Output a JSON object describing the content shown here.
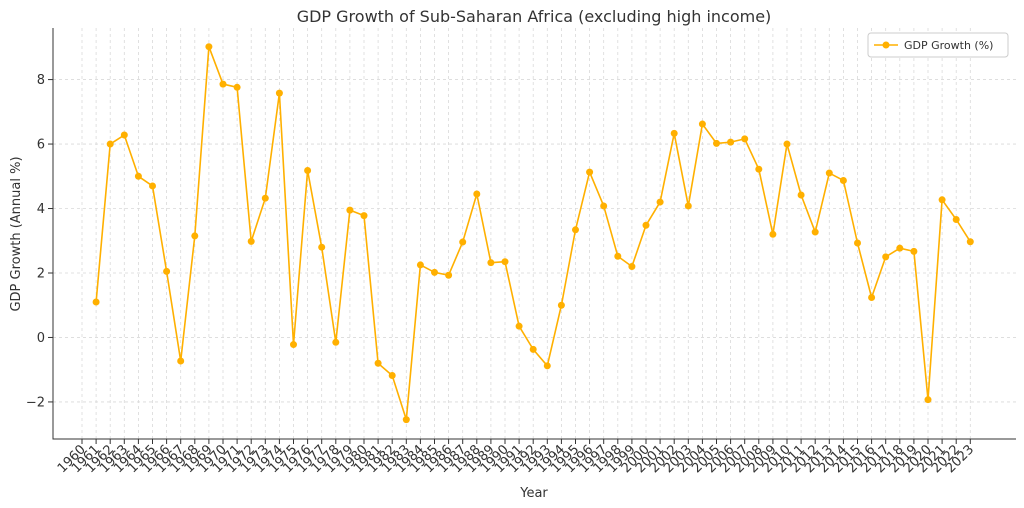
{
  "chart_data": {
    "type": "line",
    "title": "GDP Growth of Sub-Saharan Africa (excluding high income)",
    "xlabel": "Year",
    "ylabel": "GDP Growth (Annual %)",
    "x": [
      1960,
      1961,
      1962,
      1963,
      1964,
      1965,
      1966,
      1967,
      1968,
      1969,
      1970,
      1971,
      1972,
      1973,
      1974,
      1975,
      1976,
      1977,
      1978,
      1979,
      1980,
      1981,
      1982,
      1983,
      1984,
      1985,
      1986,
      1987,
      1988,
      1989,
      1990,
      1991,
      1992,
      1993,
      1994,
      1995,
      1996,
      1997,
      1998,
      1999,
      2000,
      2001,
      2002,
      2003,
      2004,
      2005,
      2006,
      2007,
      2008,
      2009,
      2010,
      2011,
      2012,
      2013,
      2014,
      2015,
      2016,
      2017,
      2018,
      2019,
      2020,
      2021,
      2022,
      2023
    ],
    "xticks": [
      "1960",
      "1961",
      "1962",
      "1963",
      "1964",
      "1965",
      "1966",
      "1967",
      "1968",
      "1969",
      "1970",
      "1971",
      "1972",
      "1973",
      "1974",
      "1975",
      "1976",
      "1977",
      "1978",
      "1979",
      "1980",
      "1981",
      "1982",
      "1983",
      "1984",
      "1985",
      "1986",
      "1987",
      "1988",
      "1989",
      "1990",
      "1991",
      "1992",
      "1993",
      "1994",
      "1995",
      "1996",
      "1997",
      "1998",
      "1999",
      "2000",
      "2001",
      "2002",
      "2003",
      "2004",
      "2005",
      "2006",
      "2007",
      "2008",
      "2009",
      "2010",
      "2011",
      "2012",
      "2013",
      "2014",
      "2015",
      "2016",
      "2017",
      "2018",
      "2019",
      "2020",
      "2021",
      "2022",
      "2023"
    ],
    "series": [
      {
        "name": "GDP Growth (%)",
        "color": "#ffb000",
        "values": [
          null,
          1.1,
          6.0,
          6.28,
          5.0,
          4.7,
          2.05,
          -0.73,
          3.15,
          9.02,
          7.86,
          7.76,
          2.98,
          4.32,
          7.58,
          -0.22,
          5.18,
          2.8,
          -0.15,
          3.95,
          3.78,
          -0.8,
          -1.18,
          -2.55,
          2.25,
          2.02,
          1.93,
          2.96,
          4.45,
          2.32,
          2.35,
          0.35,
          -0.37,
          -0.88,
          1.0,
          3.34,
          5.13,
          4.08,
          2.52,
          2.2,
          3.48,
          4.2,
          6.33,
          4.08,
          6.62,
          6.02,
          6.06,
          6.16,
          5.22,
          3.2,
          6.0,
          4.42,
          3.27,
          5.1,
          4.87,
          2.93,
          1.24,
          2.5,
          2.77,
          2.67,
          -1.93,
          4.27,
          3.66,
          2.97
        ]
      }
    ],
    "ylim": [
      -3.15,
      9.6
    ],
    "yticks": [
      -2,
      0,
      2,
      4,
      6,
      8
    ],
    "grid": true,
    "legend_position": "top-right"
  }
}
